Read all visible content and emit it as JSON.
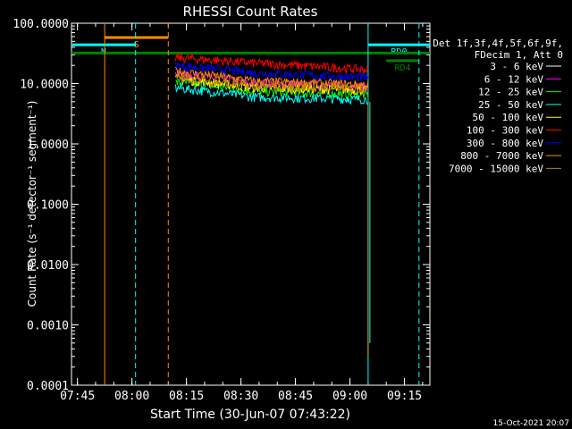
{
  "chart_data": {
    "type": "line",
    "title": "RHESSI Count Rates",
    "xlabel": "Start Time (30-Jun-07 07:43:22)",
    "ylabel": "Count Rate (s⁻¹ detector⁻¹ segment⁻¹)",
    "x_ticks": [
      "07:45",
      "08:00",
      "08:15",
      "08:30",
      "08:45",
      "09:00",
      "09:15"
    ],
    "y_ticks": [
      "0.0001",
      "0.0010",
      "0.0100",
      "0.1000",
      "1.0000",
      "10.0000",
      "100.0000"
    ],
    "xlim": [
      "07:43:22",
      "09:22:00"
    ],
    "ylim": [
      0.0001,
      100
    ],
    "y_scale": "log",
    "legend_header": [
      "Det 1f,3f,4f,5f,6f,9f,",
      "FDecim 1, Att 0"
    ],
    "series": [
      {
        "name": "3 - 6 keV",
        "color": "#000000",
        "start": [
          0.0,
          11.0
        ],
        "mid": [
          0.4,
          6.5
        ],
        "end": [
          1.0,
          4.8
        ]
      },
      {
        "name": "6 - 12 keV",
        "color": "#ff00ff",
        "start": [
          0.0,
          14.5
        ],
        "mid": [
          0.4,
          10.0
        ],
        "end": [
          1.0,
          9.0
        ]
      },
      {
        "name": "12 - 25 keV",
        "color": "#00ff00",
        "start": [
          0.0,
          10.5
        ],
        "mid": [
          0.4,
          7.5
        ],
        "end": [
          1.0,
          6.5
        ]
      },
      {
        "name": "25 - 50 keV",
        "color": "#00ffff",
        "start": [
          0.0,
          8.5
        ],
        "mid": [
          0.4,
          6.0
        ],
        "end": [
          1.0,
          5.5
        ]
      },
      {
        "name": "50 - 100 keV",
        "color": "#ffff00",
        "start": [
          0.0,
          12.0
        ],
        "mid": [
          0.4,
          8.5
        ],
        "end": [
          1.0,
          7.8
        ]
      },
      {
        "name": "100 - 300 keV",
        "color": "#ff0000",
        "start": [
          0.0,
          27.0
        ],
        "mid": [
          0.4,
          22.0
        ],
        "end": [
          1.0,
          17.0
        ]
      },
      {
        "name": "300 - 800 keV",
        "color": "#0000ff",
        "start": [
          0.0,
          20.0
        ],
        "mid": [
          0.4,
          15.0
        ],
        "end": [
          1.0,
          12.5
        ]
      },
      {
        "name": "800 - 7000 keV",
        "color": "#ff8c00",
        "start": [
          0.0,
          16.0
        ],
        "mid": [
          0.4,
          11.0
        ],
        "end": [
          1.0,
          9.5
        ]
      },
      {
        "name": "7000 - 15000 keV",
        "color": "#b8860b",
        "start": [
          0.0,
          12.5
        ],
        "mid": [
          0.4,
          9.0
        ],
        "end": [
          1.0,
          8.2
        ]
      }
    ],
    "data_time_range": [
      "08:12:00",
      "09:05:00"
    ],
    "annotations": [
      {
        "label": "S",
        "color": "#ff8c00",
        "level": 58,
        "from": "07:52:30",
        "to": "08:10:00"
      },
      {
        "label": "N",
        "color": "#00ffff",
        "level": 44,
        "from": "07:43:22",
        "to": "08:01:00"
      },
      {
        "label": "RD0",
        "color": "#00ffff",
        "level": 44,
        "from": "09:05:00",
        "to": "09:22:00"
      },
      {
        "label": "RD4",
        "color": "#008000",
        "level": 24,
        "from": "09:10:00",
        "to": "09:19:00"
      },
      {
        "label": "",
        "color": "#008000",
        "level": 32,
        "from": "07:43:22",
        "to": "09:22:00"
      }
    ],
    "vertical_markers": [
      {
        "time": "07:52:30",
        "color": "#ff8c00",
        "style": "solid"
      },
      {
        "time": "08:01:00",
        "color": "#00ffff",
        "style": "dashed"
      },
      {
        "time": "08:10:00",
        "color": "#ff8c00",
        "style": "dashed"
      },
      {
        "time": "09:05:00",
        "color": "#00ffff",
        "style": "solid"
      },
      {
        "time": "09:19:00",
        "color": "#00ffff",
        "style": "dashed"
      }
    ],
    "footer_date": "15-Oct-2021 20:07"
  }
}
